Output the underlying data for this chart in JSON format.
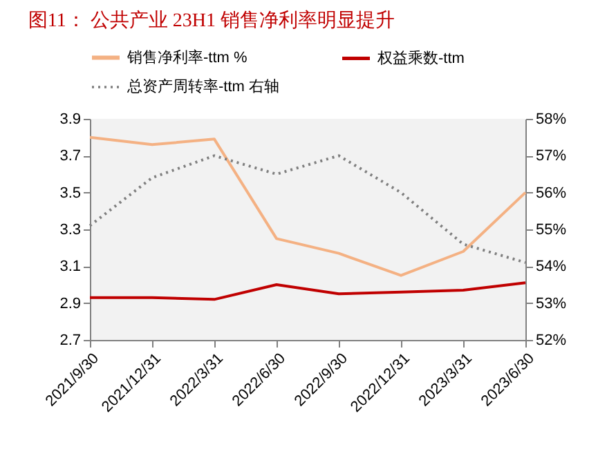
{
  "chart_data": {
    "type": "line",
    "title": "图11：  公共产业 23H1 销售净利率明显提升",
    "categories": [
      "2021/9/30",
      "2021/12/31",
      "2022/3/31",
      "2022/6/30",
      "2022/9/30",
      "2022/12/31",
      "2023/3/31",
      "2023/6/30"
    ],
    "series": [
      {
        "name": "销售净利率-ttm %",
        "color": "#f4b183",
        "line_style": "solid",
        "values": [
          3.8,
          3.76,
          3.79,
          3.25,
          3.17,
          3.05,
          3.18,
          3.5
        ]
      },
      {
        "name": "权益乘数-ttm",
        "color": "#c00000",
        "line_style": "solid",
        "values": [
          2.93,
          2.93,
          2.92,
          3.0,
          2.95,
          2.96,
          2.97,
          3.01
        ]
      },
      {
        "name": "总资产周转率-ttm 右轴",
        "color": "#7f7f7f",
        "line_style": "dotted",
        "axis": "y2",
        "values": [
          55.1,
          56.4,
          57.0,
          56.5,
          57.0,
          56.0,
          54.6,
          54.1
        ]
      }
    ],
    "ylim": [
      2.7,
      3.9
    ],
    "yticks": [
      2.7,
      2.9,
      3.1,
      3.3,
      3.5,
      3.7,
      3.9
    ],
    "y2lim": [
      52,
      58
    ],
    "y2ticks": [
      {
        "value": 52,
        "label": "52%"
      },
      {
        "value": 53,
        "label": "53%"
      },
      {
        "value": 54,
        "label": "54%"
      },
      {
        "value": 55,
        "label": "55%"
      },
      {
        "value": 56,
        "label": "56%"
      },
      {
        "value": 57,
        "label": "57%"
      },
      {
        "value": 58,
        "label": "58%"
      }
    ],
    "grid": false,
    "legend": "top",
    "marker": "none"
  }
}
